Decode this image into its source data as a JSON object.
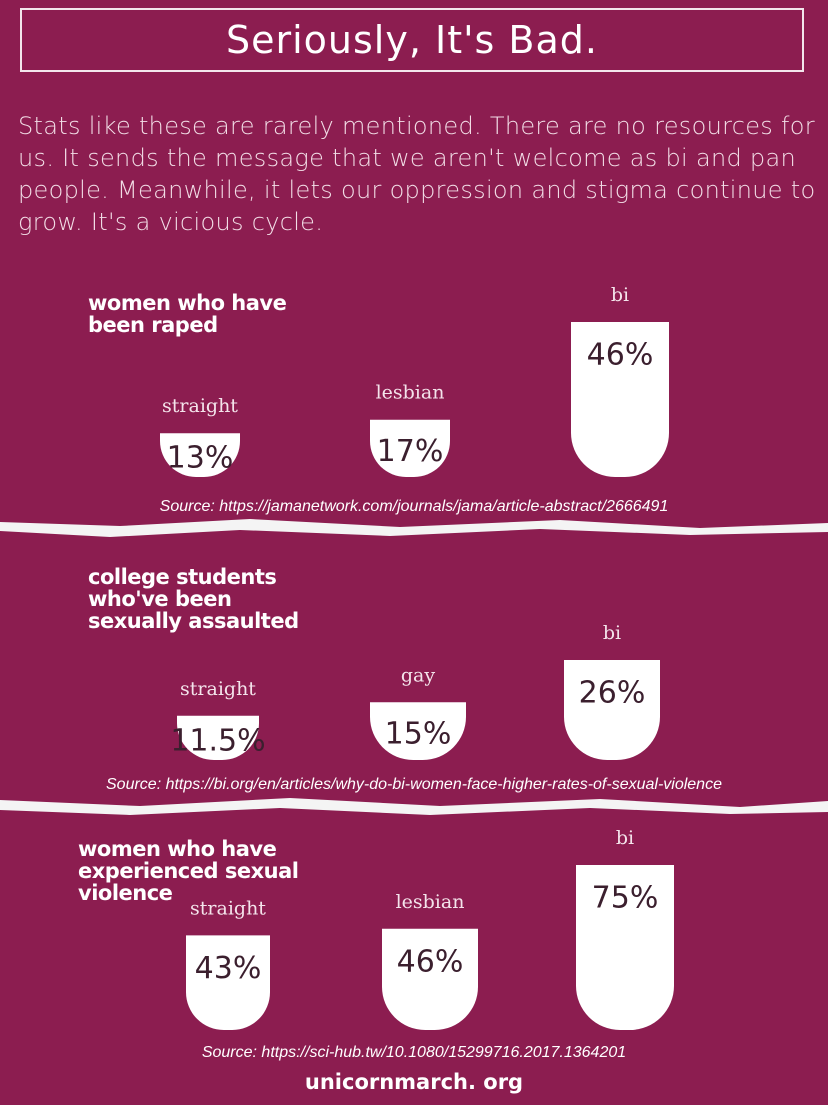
{
  "header": {
    "title": "Seriously, It's Bad.",
    "text": "Stats like these are rarely mentioned. There are no resources for us. It sends the message that we aren't welcome as bi and pan people. Meanwhile, it lets our oppression and stigma continue to grow. It's a vicious cycle."
  },
  "chart_data": [
    {
      "type": "bar",
      "title": "women who have been raped",
      "categories": [
        "straight",
        "lesbian",
        "bi"
      ],
      "values": [
        13,
        17,
        46
      ],
      "value_labels": [
        "13%",
        "17%",
        "46%"
      ],
      "color": "#ffffff",
      "source": "Source: https://jamanetwork.com/journals/jama/article-abstract/2666491"
    },
    {
      "type": "bar",
      "title": "college students who've been sexually assaulted",
      "categories": [
        "straight",
        "gay",
        "bi"
      ],
      "values": [
        11.5,
        15,
        26
      ],
      "value_labels": [
        "11.5%",
        "15%",
        "26%"
      ],
      "color": "#ffffff",
      "source": "Source: https://bi.org/en/articles/why-do-bi-women-face-higher-rates-of-sexual-violence"
    },
    {
      "type": "bar",
      "title": "women who have experienced sexual violence",
      "categories": [
        "straight",
        "lesbian",
        "bi"
      ],
      "values": [
        43,
        46,
        75
      ],
      "value_labels": [
        "43%",
        "46%",
        "75%"
      ],
      "color": "#ffffff",
      "source": "Source: https://sci-hub.tw/10.1080/15299716.2017.1364201"
    }
  ],
  "footer": "unicornmarch. org"
}
